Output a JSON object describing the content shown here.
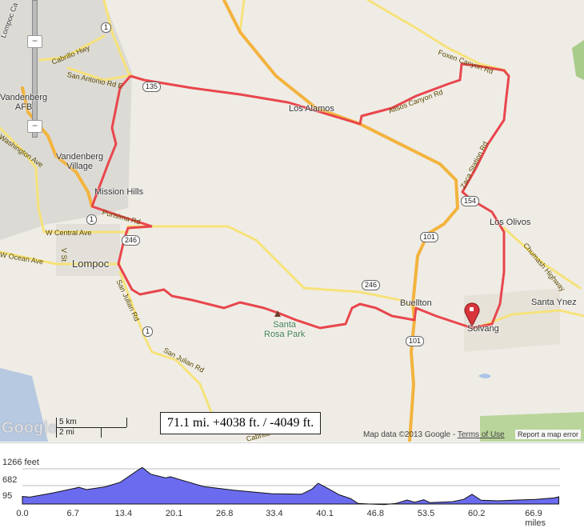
{
  "map": {
    "places": {
      "lompoc_canyon": "Lompoc Ca",
      "vandenberg_afb": "Vandenberg\nAFB",
      "vandenberg_village": "Vandenberg\nVillage",
      "mission_hills": "Mission Hills",
      "lompoc": "Lompoc",
      "los_alamos": "Los Alamos",
      "los_olivos": "Los Olivos",
      "buellton": "Buellton",
      "solvang": "Solvang",
      "santa_ynez": "Santa Ynez",
      "santa_rosa_park": "Santa\nRosa Park"
    },
    "roads": {
      "cabrillo_hwy": "Cabrillo Hwy",
      "san_antonio_rd_e": "San Antonio Rd E",
      "washington_ave": "Washington Ave",
      "purisima_rd": "Purisima Rd",
      "w_central_ave": "W Central Ave",
      "v_st": "V St",
      "w_ocean_ave": "W Ocean Ave",
      "san_julian_rd_1": "San Julian Rd",
      "san_julian_rd_2": "San Julian Rd",
      "foxen_canyon_rd": "Foxen Canyon Rd",
      "alisos_canyon_rd": "Alisos Canyon Rd",
      "zaca_station_rd": "Zaca Station Rd",
      "chumash_highway": "Chumash Highway",
      "cabrillo_hwy_south": "Cabrillo Hwy"
    },
    "shields": [
      "1",
      "135",
      "1",
      "246",
      "1",
      "154",
      "101",
      "246",
      "101"
    ],
    "zoom_out_label": "−",
    "colors": {
      "route": "#e8464c",
      "highway": "#f3b33d",
      "road": "#f6e27a",
      "land": "#efece6",
      "base": "#d9d7d2"
    },
    "stats": "71.1 mi. +4038 ft. / -4049 ft.",
    "scale_km": "5 km",
    "scale_mi": "2 mi",
    "logo": "Google",
    "attribution": "Map data ©2013 Google - ",
    "terms": "Terms of Use",
    "report": "Report a map error"
  },
  "chart_data": {
    "type": "area",
    "xlabel": "miles",
    "ylabel": "feet",
    "y_ticks": [
      "1266 feet",
      "682",
      "95"
    ],
    "y_tick_values": [
      1266,
      682,
      95
    ],
    "x_ticks": [
      "0.0",
      "6.7",
      "13.4",
      "20.1",
      "26.8",
      "33.4",
      "40.1",
      "46.8",
      "53.5",
      "60.2",
      "66.9 miles"
    ],
    "x_tick_values": [
      0,
      6.7,
      13.4,
      20.1,
      26.8,
      33.4,
      40.1,
      46.8,
      53.5,
      60.2,
      66.9
    ],
    "xlim": [
      0,
      71.1
    ],
    "ylim": [
      0,
      1400
    ],
    "grid": true,
    "color": "#6b6bf0",
    "x": [
      0,
      1,
      4,
      6.5,
      7.5,
      8.5,
      11,
      13,
      15.2,
      15.9,
      17,
      19,
      19.6,
      21,
      24,
      28,
      33,
      37,
      38.4,
      39.2,
      40.5,
      42,
      43.5,
      44.5,
      46,
      48,
      49.5,
      51,
      52,
      53.2,
      54,
      57,
      58.5,
      59.6,
      60.8,
      63,
      65,
      68,
      70.5,
      71.1
    ],
    "y": [
      300,
      280,
      420,
      560,
      620,
      540,
      640,
      800,
      1200,
      1310,
      1080,
      950,
      990,
      880,
      650,
      520,
      400,
      380,
      560,
      760,
      580,
      360,
      230,
      60,
      40,
      20,
      60,
      180,
      100,
      190,
      90,
      120,
      200,
      380,
      170,
      150,
      170,
      200,
      250,
      290
    ]
  }
}
